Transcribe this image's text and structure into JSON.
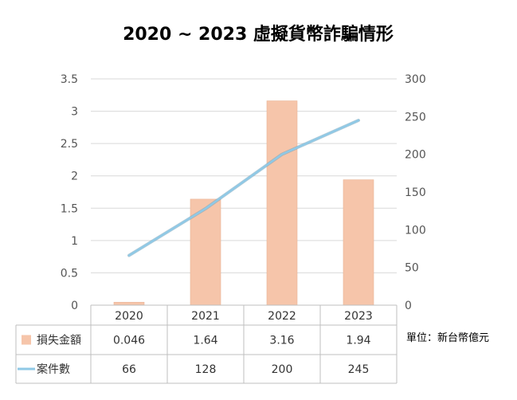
{
  "chart_data": {
    "type": "bar",
    "title": "2020 ~ 2023 虛擬貨幣詐騙情形",
    "categories": [
      "2020",
      "2021",
      "2022",
      "2023"
    ],
    "y_left": {
      "ticks": [
        "0",
        "0.5",
        "1",
        "1.5",
        "2",
        "2.5",
        "3",
        "3.5"
      ],
      "range": [
        0,
        3.5
      ]
    },
    "y_right": {
      "ticks": [
        "0",
        "50",
        "100",
        "150",
        "200",
        "250",
        "300"
      ],
      "range": [
        0,
        300
      ]
    },
    "series": [
      {
        "name": "損失金額",
        "type": "bar",
        "axis": "left",
        "values": [
          0.046,
          1.64,
          3.16,
          1.94
        ],
        "labels": [
          "0.046",
          "1.64",
          "3.16",
          "1.94"
        ],
        "color": "#f6c5aa"
      },
      {
        "name": "案件數",
        "type": "line",
        "axis": "right",
        "values": [
          66,
          128,
          200,
          245
        ],
        "labels": [
          "66",
          "128",
          "200",
          "245"
        ],
        "color": "#8fc9e6"
      }
    ],
    "unit_note": "單位：新台幣億元",
    "grid": true,
    "legend": "data-table"
  }
}
